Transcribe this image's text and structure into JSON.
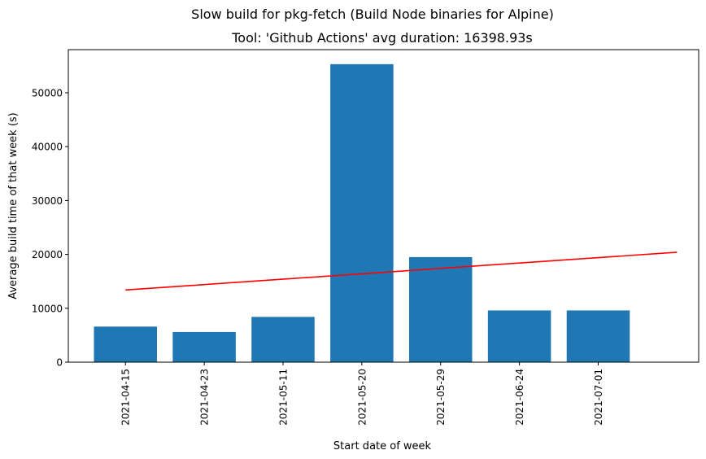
{
  "chart_data": {
    "type": "bar",
    "suptitle": "Slow build for pkg-fetch (Build Node binaries for Alpine)",
    "title": "Tool: 'Github Actions' avg duration: 16398.93s",
    "xlabel": "Start date of week",
    "ylabel": "Average build time of that week (s)",
    "categories": [
      "2021-04-15",
      "2021-04-23",
      "2021-05-11",
      "2021-05-20",
      "2021-05-29",
      "2021-06-24",
      "2021-07-01"
    ],
    "values": [
      6600,
      5600,
      8400,
      55300,
      19500,
      9600,
      9600
    ],
    "bar_color": "#1f77b4",
    "ylim": [
      0,
      58000
    ],
    "yticks": [
      0,
      10000,
      20000,
      30000,
      40000,
      50000
    ],
    "trend_line": {
      "color": "#ff0000",
      "x": [
        0,
        7
      ],
      "y": [
        13400,
        20400
      ]
    },
    "grid": false
  }
}
